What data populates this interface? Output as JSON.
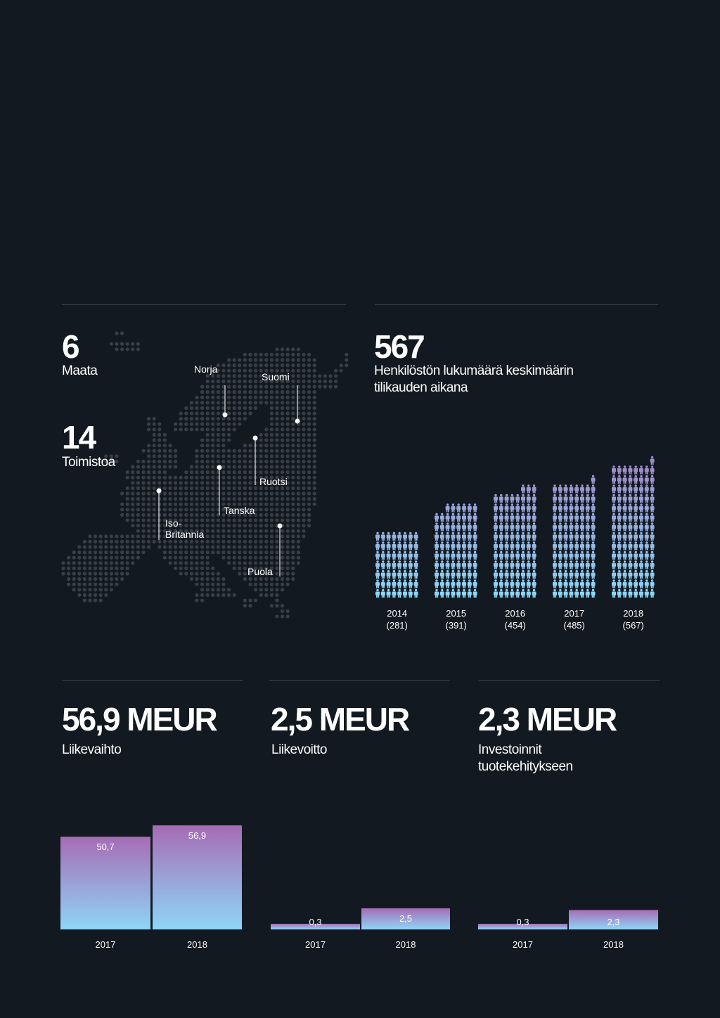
{
  "colors": {
    "background": "#121920",
    "gradient_top": "#a66cb5",
    "gradient_bottom": "#8ed6f6",
    "map_dot": "#393f47",
    "rule": "#3a424b"
  },
  "countries": {
    "value": "6",
    "label": "Maata"
  },
  "offices": {
    "value": "14",
    "label": "Toimistoa"
  },
  "map": {
    "labels": {
      "norja": "Norja",
      "suomi": "Suomi",
      "ruotsi": "Ruotsi",
      "tanska": "Tanska",
      "iso_britannia_1": "Iso-",
      "iso_britannia_2": "Britannia",
      "puola": "Puola"
    }
  },
  "employees": {
    "value": "567",
    "label_line1": "Henkilöstön lukumäärä keskimäärin",
    "label_line2": "tilikauden aikana"
  },
  "kpis": [
    {
      "value": "56,9 MEUR",
      "label_line1": "Liikevaihto",
      "label_line2": ""
    },
    {
      "value": "2,5 MEUR",
      "label_line1": "Liikevoitto",
      "label_line2": ""
    },
    {
      "value": "2,3 MEUR",
      "label_line1": "Investoinnit",
      "label_line2": "tuotekehitykseen"
    }
  ],
  "chart_data": [
    {
      "type": "bar",
      "subtype": "pictogram",
      "categories": [
        "2014",
        "2015",
        "2016",
        "2017",
        "2018"
      ],
      "category_notes": [
        "(281)",
        "(391)",
        "(454)",
        "(485)",
        "(567)"
      ],
      "values": [
        281,
        391,
        454,
        485,
        567
      ]
    },
    {
      "type": "bar",
      "categories": [
        "2017",
        "2018"
      ],
      "values": [
        50.7,
        56.9
      ],
      "value_labels": [
        "50,7",
        "56,9"
      ],
      "ylim": [
        0,
        56.9
      ]
    },
    {
      "type": "bar",
      "categories": [
        "2017",
        "2018"
      ],
      "values": [
        0.3,
        2.5
      ],
      "value_labels": [
        "0,3",
        "2,5"
      ],
      "ylim": [
        0,
        12.3
      ]
    },
    {
      "type": "bar",
      "categories": [
        "2017",
        "2018"
      ],
      "values": [
        0.3,
        2.3
      ],
      "value_labels": [
        "0,3",
        "2,3"
      ],
      "ylim": [
        0,
        12.3
      ]
    }
  ]
}
